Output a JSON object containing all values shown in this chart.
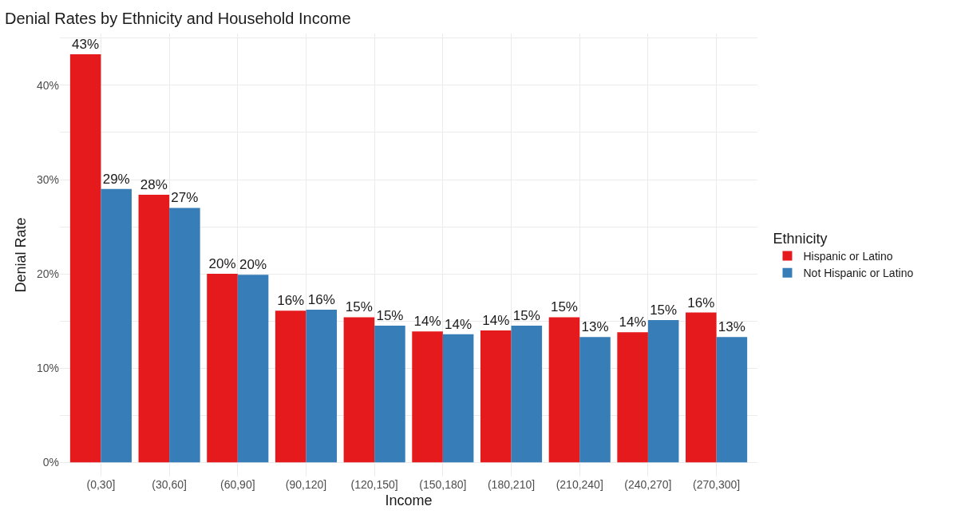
{
  "chart_data": {
    "type": "bar",
    "title": "Denial Rates by Ethnicity and Household Income",
    "xlabel": "Income",
    "ylabel": "Denial Rate",
    "legend_title": "Ethnicity",
    "categories": [
      "(0,30]",
      "(30,60]",
      "(60,90]",
      "(90,120]",
      "(120,150]",
      "(150,180]",
      "(180,210]",
      "(210,240]",
      "(240,270]",
      "(270,300]"
    ],
    "series": [
      {
        "name": "Hispanic or Latino",
        "color": "#e41a1c",
        "values": [
          43.3,
          28.4,
          20.0,
          16.1,
          15.4,
          13.9,
          14.0,
          15.4,
          13.8,
          15.9
        ],
        "value_labels": [
          "43%",
          "28%",
          "20%",
          "16%",
          "15%",
          "14%",
          "14%",
          "15%",
          "14%",
          "16%"
        ]
      },
      {
        "name": "Not Hispanic or Latino",
        "color": "#377eb8",
        "values": [
          29.0,
          27.0,
          19.9,
          16.2,
          14.5,
          13.6,
          14.5,
          13.3,
          15.1,
          13.3
        ],
        "value_labels": [
          "29%",
          "27%",
          "20%",
          "16%",
          "15%",
          "14%",
          "15%",
          "13%",
          "15%",
          "13%"
        ]
      }
    ],
    "ylim": [
      -1.5,
      45.5
    ],
    "yticks": [
      {
        "value": 0,
        "label": "0%"
      },
      {
        "value": 5,
        "label": null
      },
      {
        "value": 10,
        "label": "10%"
      },
      {
        "value": 15,
        "label": null
      },
      {
        "value": 20,
        "label": "20%"
      },
      {
        "value": 25,
        "label": null
      },
      {
        "value": 30,
        "label": "30%"
      },
      {
        "value": 35,
        "label": null
      },
      {
        "value": 40,
        "label": "40%"
      },
      {
        "value": 45,
        "label": null
      }
    ],
    "grid": true,
    "legend": "right"
  }
}
